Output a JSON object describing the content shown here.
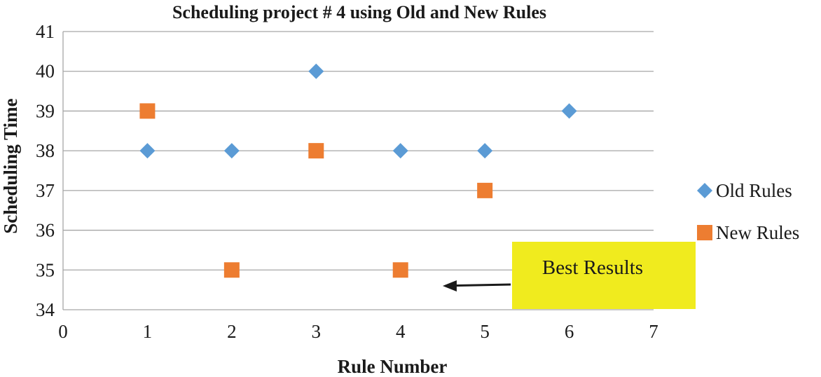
{
  "chart_data": {
    "type": "scatter",
    "title": "Scheduling project # 4 using Old and New Rules",
    "xlabel": "Rule Number",
    "ylabel": "Scheduling Time",
    "xlim": [
      0,
      7
    ],
    "ylim": [
      34,
      41
    ],
    "x_ticks": [
      "0",
      "1",
      "2",
      "3",
      "4",
      "5",
      "6",
      "7"
    ],
    "y_ticks": [
      "34",
      "35",
      "36",
      "37",
      "38",
      "39",
      "40",
      "41"
    ],
    "grid": "horizontal",
    "legend_position": "right",
    "series": [
      {
        "name": "Old Rules",
        "marker": "diamond",
        "color": "#5B9BD5",
        "points": [
          {
            "x": 1,
            "y": 38
          },
          {
            "x": 2,
            "y": 38
          },
          {
            "x": 3,
            "y": 40
          },
          {
            "x": 4,
            "y": 38
          },
          {
            "x": 5,
            "y": 38
          },
          {
            "x": 6,
            "y": 39
          }
        ]
      },
      {
        "name": "New Rules",
        "marker": "square",
        "color": "#ED7D31",
        "points": [
          {
            "x": 1,
            "y": 39
          },
          {
            "x": 2,
            "y": 35
          },
          {
            "x": 3,
            "y": 38
          },
          {
            "x": 4,
            "y": 35
          },
          {
            "x": 5,
            "y": 37
          }
        ]
      }
    ],
    "annotations": [
      {
        "text": "Best Results",
        "background": "#F0EB1E",
        "arrow_target": {
          "x": 4.5,
          "y": 34.6
        }
      }
    ]
  }
}
